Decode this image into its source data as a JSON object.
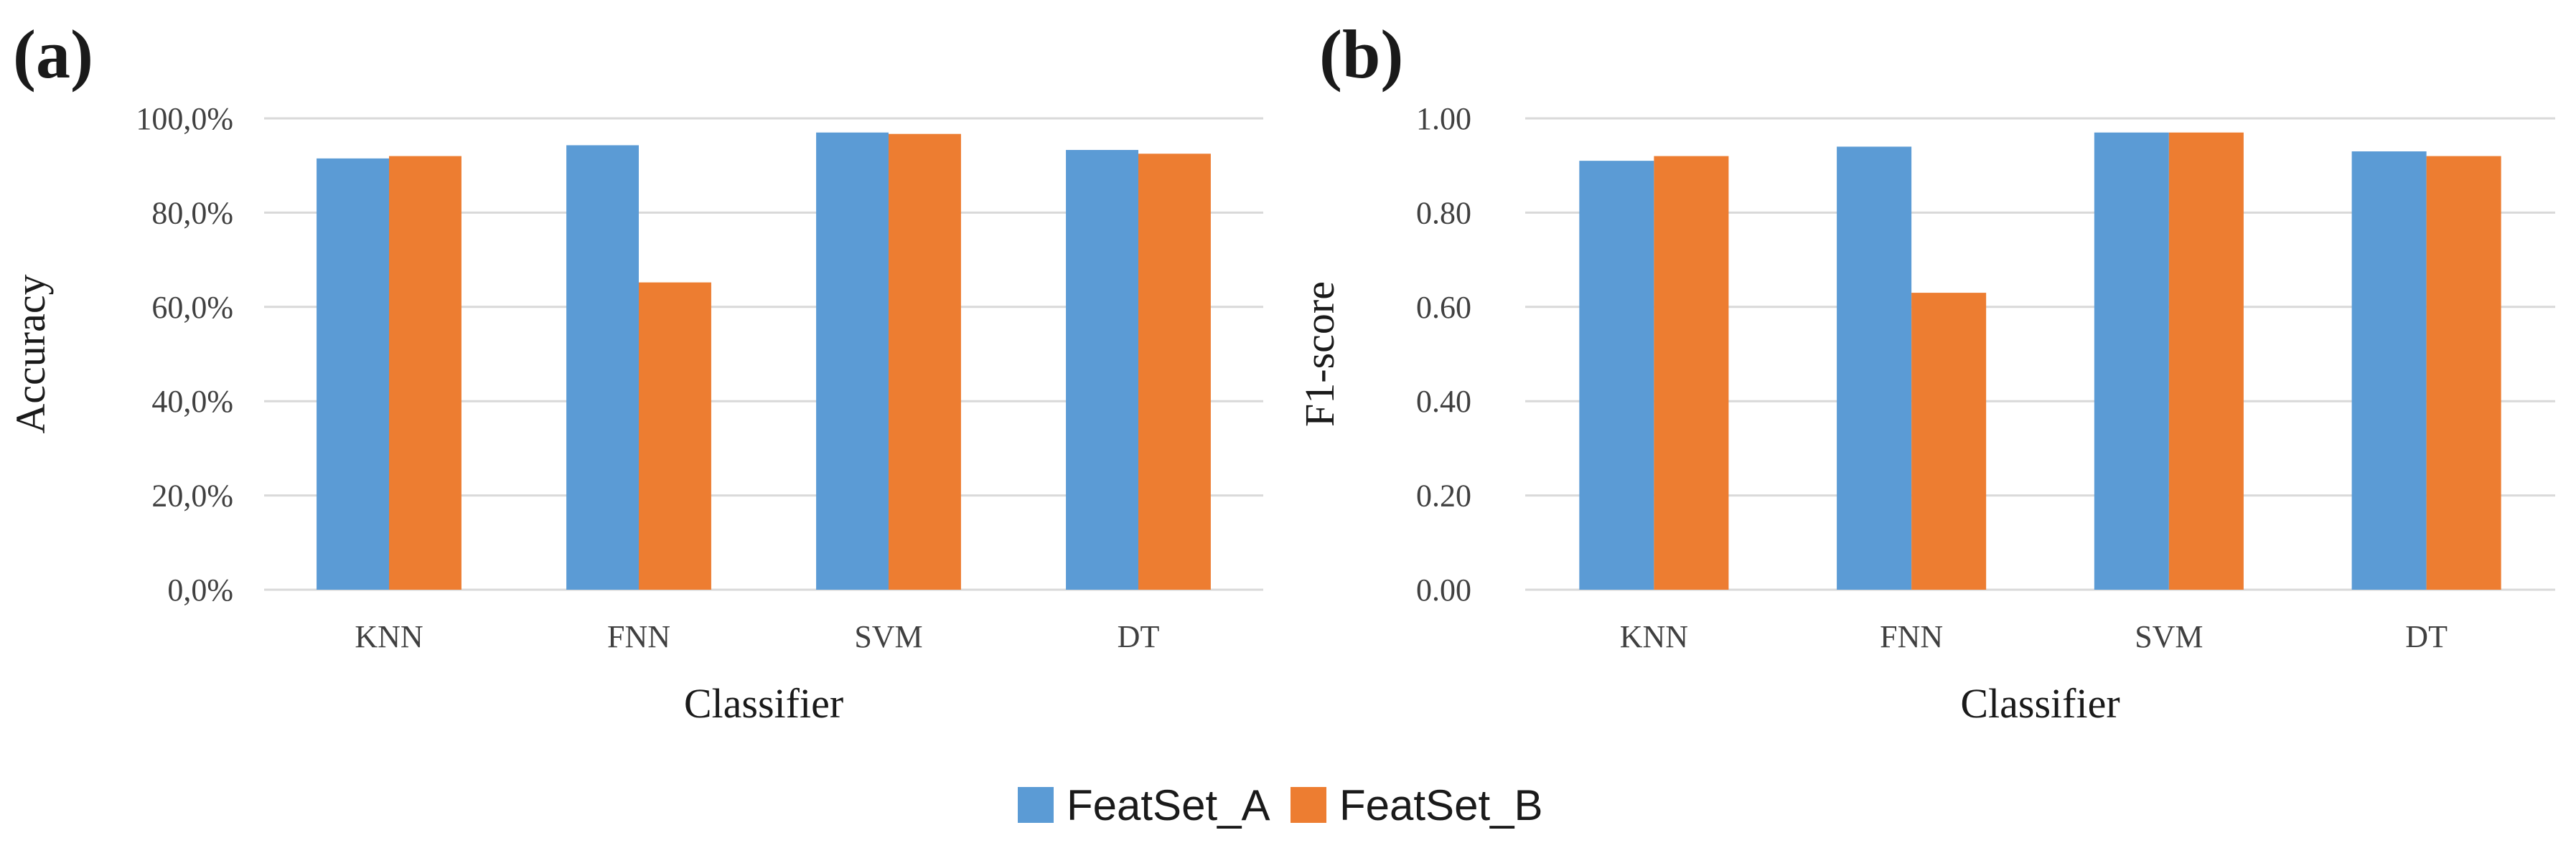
{
  "chart_data": [
    {
      "type": "bar",
      "panel_label": "(a)",
      "categories": [
        "KNN",
        "FNN",
        "SVM",
        "DT"
      ],
      "series": [
        {
          "name": "FeatSet_A",
          "values": [
            91.5,
            94.3,
            97.0,
            93.3
          ]
        },
        {
          "name": "FeatSet_B",
          "values": [
            92.0,
            65.2,
            96.7,
            92.5
          ]
        }
      ],
      "xlabel": "Classifier",
      "ylabel": "Accuracy",
      "ylim": [
        0,
        100
      ],
      "yticks": [
        0,
        20,
        40,
        60,
        80,
        100
      ],
      "ytick_labels": [
        "0,0%",
        "20,0%",
        "40,0%",
        "60,0%",
        "80,0%",
        "100,0%"
      ],
      "grid": true
    },
    {
      "type": "bar",
      "panel_label": "(b)",
      "categories": [
        "KNN",
        "FNN",
        "SVM",
        "DT"
      ],
      "series": [
        {
          "name": "FeatSet_A",
          "values": [
            0.91,
            0.94,
            0.97,
            0.93
          ]
        },
        {
          "name": "FeatSet_B",
          "values": [
            0.92,
            0.63,
            0.97,
            0.92
          ]
        }
      ],
      "xlabel": "Classifier",
      "ylabel": "F1-score",
      "ylim": [
        0,
        1
      ],
      "yticks": [
        0,
        0.2,
        0.4,
        0.6,
        0.8,
        1.0
      ],
      "ytick_labels": [
        "0.00",
        "0.20",
        "0.40",
        "0.60",
        "0.80",
        "1.00"
      ],
      "grid": true
    }
  ],
  "legend": {
    "placement": "bottom-center",
    "items": [
      {
        "label": "FeatSet_A",
        "color": "#5B9BD5"
      },
      {
        "label": "FeatSet_B",
        "color": "#ED7D31"
      }
    ]
  }
}
